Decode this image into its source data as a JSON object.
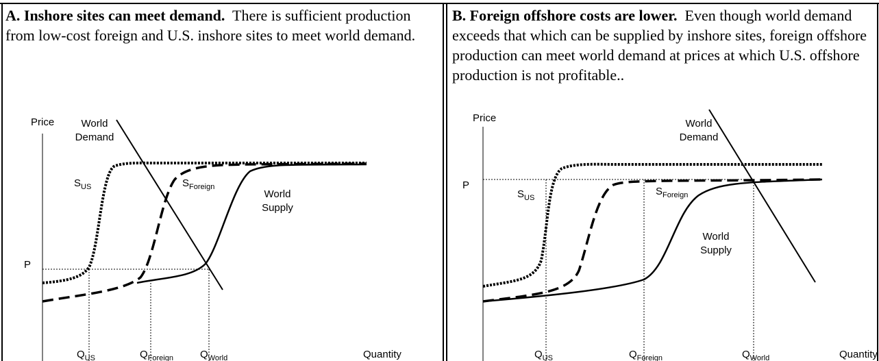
{
  "panels": [
    {
      "heading": "A.  Inshore sites can meet demand.",
      "body": "There is sufficient production from low-cost foreign and U.S. inshore sites to meet world demand.",
      "axis_y": "Price",
      "axis_x": "Quantity",
      "p_label": "P",
      "demand_label": [
        "World",
        "Demand"
      ],
      "supply_label": [
        "World",
        "Supply"
      ],
      "s_us": {
        "base": "S",
        "sub": "US"
      },
      "s_foreign": {
        "base": "S",
        "sub": "Foreign"
      },
      "q_us": {
        "base": "Q",
        "sub": "US"
      },
      "q_foreign": {
        "base": "Q",
        "sub": "Foreign"
      },
      "q_world": {
        "base": "Q",
        "sub": "World"
      }
    },
    {
      "heading": "B.  Foreign offshore costs are lower.",
      "body": "Even though world demand exceeds that which can be supplied by inshore sites, foreign offshore production can meet world demand at prices at which U.S. offshore production is not profitable..",
      "axis_y": "Price",
      "axis_x": "Quantity",
      "p_label": "P",
      "demand_label": [
        "World",
        "Demand"
      ],
      "supply_label": [
        "World",
        "Supply"
      ],
      "s_us": {
        "base": "S",
        "sub": "US"
      },
      "s_foreign": {
        "base": "S",
        "sub": "Foreign"
      },
      "q_us": {
        "base": "Q",
        "sub": "US"
      },
      "q_foreign": {
        "base": "Q",
        "sub": "Foreign"
      },
      "q_world": {
        "base": "Q",
        "sub": "World"
      }
    }
  ]
}
